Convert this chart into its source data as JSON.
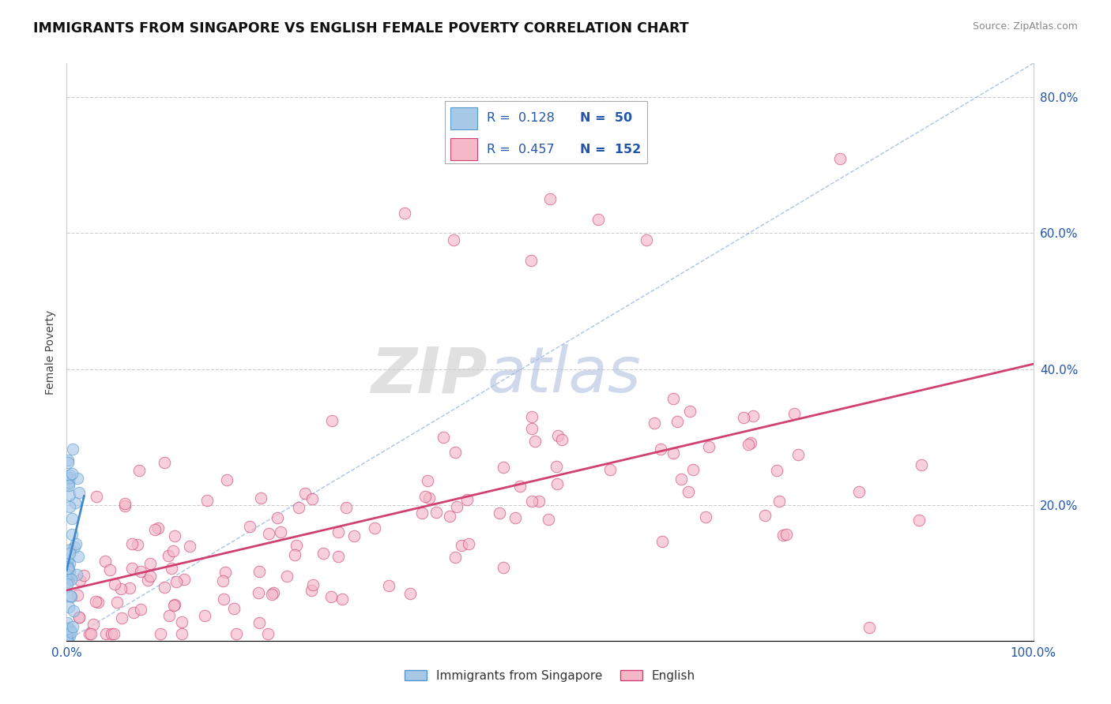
{
  "title": "IMMIGRANTS FROM SINGAPORE VS ENGLISH FEMALE POVERTY CORRELATION CHART",
  "source": "Source: ZipAtlas.com",
  "ylabel": "Female Poverty",
  "xlim": [
    0,
    1.0
  ],
  "ylim": [
    0,
    0.85
  ],
  "color_blue": "#a8c8e8",
  "color_blue_edge": "#5599cc",
  "color_pink": "#f4b8c8",
  "color_pink_edge": "#d04070",
  "color_trend_blue": "#4488cc",
  "color_trend_pink": "#d04070",
  "color_diag": "#88aadd",
  "watermark_zip": "ZIP",
  "watermark_atlas": "atlas",
  "legend_entries": [
    {
      "r": "R =  0.128",
      "n": "N =  50",
      "color": "#a8c8e8",
      "edge": "#5599cc"
    },
    {
      "r": "R =  0.457",
      "n": "N =  152",
      "color": "#f4b8c8",
      "edge": "#d04070"
    }
  ],
  "ytick_vals": [
    0.0,
    0.2,
    0.4,
    0.6,
    0.8
  ],
  "ytick_labels": [
    "",
    "20.0%",
    "40.0%",
    "60.0%",
    "80.0%"
  ],
  "bottom_legend": [
    "Immigrants from Singapore",
    "English"
  ]
}
